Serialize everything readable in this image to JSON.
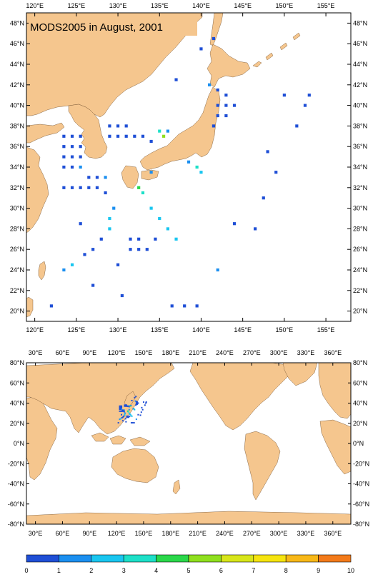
{
  "regional_map": {
    "title": "MODS2005 in August, 2001",
    "x_ticks": [
      "120°E",
      "125°E",
      "130°E",
      "135°E",
      "140°E",
      "145°E",
      "150°E",
      "155°E"
    ],
    "y_ticks": [
      "48°N",
      "46°N",
      "44°N",
      "42°N",
      "40°N",
      "38°N",
      "36°N",
      "34°N",
      "32°N",
      "30°N",
      "28°N",
      "26°N",
      "24°N",
      "22°N",
      "20°N"
    ],
    "extent": {
      "lon": [
        119,
        158
      ],
      "lat": [
        19,
        49
      ]
    }
  },
  "global_map": {
    "x_ticks": [
      "30°E",
      "60°E",
      "90°E",
      "120°E",
      "150°E",
      "180°E",
      "210°E",
      "240°E",
      "270°E",
      "300°E",
      "330°E",
      "360°E"
    ],
    "y_ticks": [
      "80°N",
      "60°N",
      "40°N",
      "20°N",
      "0°N",
      "-20°N",
      "-40°N",
      "-60°N",
      "-80°N"
    ],
    "extent": {
      "lon": [
        20,
        380
      ],
      "lat": [
        -80,
        80
      ]
    }
  },
  "colorbar": {
    "labels": [
      "0",
      "1",
      "2",
      "3",
      "4",
      "5",
      "6",
      "7",
      "8",
      "9",
      "10"
    ],
    "colors": [
      "#1f4fd6",
      "#1b8ff0",
      "#19c6f0",
      "#1de0c8",
      "#2ad84a",
      "#8fe01e",
      "#d8e61a",
      "#f6e40f",
      "#f8b818",
      "#f37a1a",
      "#e8421a"
    ]
  },
  "chart_data": {
    "type": "heatmap",
    "title": "MODS2005 in August, 2001",
    "xlabel": "",
    "ylabel": "",
    "value_range": [
      0,
      10
    ],
    "cells": [
      {
        "lon": 123.5,
        "lat": 37.0,
        "v": 0.5
      },
      {
        "lon": 124.5,
        "lat": 37.0,
        "v": 0.5
      },
      {
        "lon": 125.5,
        "lat": 37.0,
        "v": 0.5
      },
      {
        "lon": 123.5,
        "lat": 36.0,
        "v": 0.5
      },
      {
        "lon": 124.5,
        "lat": 36.0,
        "v": 0.5
      },
      {
        "lon": 125.5,
        "lat": 36.0,
        "v": 0.5
      },
      {
        "lon": 123.5,
        "lat": 35.0,
        "v": 0.5
      },
      {
        "lon": 124.5,
        "lat": 35.0,
        "v": 0.5
      },
      {
        "lon": 125.5,
        "lat": 35.0,
        "v": 0.5
      },
      {
        "lon": 123.5,
        "lat": 34.0,
        "v": 0.5
      },
      {
        "lon": 124.5,
        "lat": 34.0,
        "v": 0.5
      },
      {
        "lon": 125.5,
        "lat": 34.0,
        "v": 1.5
      },
      {
        "lon": 126.5,
        "lat": 33.0,
        "v": 0.5
      },
      {
        "lon": 127.5,
        "lat": 33.0,
        "v": 0.5
      },
      {
        "lon": 128.5,
        "lat": 33.0,
        "v": 1.5
      },
      {
        "lon": 123.5,
        "lat": 32.0,
        "v": 0.5
      },
      {
        "lon": 124.5,
        "lat": 32.0,
        "v": 0.5
      },
      {
        "lon": 125.5,
        "lat": 32.0,
        "v": 0.5
      },
      {
        "lon": 126.5,
        "lat": 32.0,
        "v": 0.5
      },
      {
        "lon": 127.5,
        "lat": 32.0,
        "v": 0.5
      },
      {
        "lon": 128.5,
        "lat": 31.5,
        "v": 0.5
      },
      {
        "lon": 129.0,
        "lat": 38.0,
        "v": 0.5
      },
      {
        "lon": 130.0,
        "lat": 38.0,
        "v": 0.5
      },
      {
        "lon": 131.0,
        "lat": 38.0,
        "v": 0.5
      },
      {
        "lon": 129.0,
        "lat": 37.0,
        "v": 0.5
      },
      {
        "lon": 130.0,
        "lat": 37.0,
        "v": 0.5
      },
      {
        "lon": 131.0,
        "lat": 37.0,
        "v": 0.5
      },
      {
        "lon": 132.0,
        "lat": 37.0,
        "v": 0.5
      },
      {
        "lon": 133.0,
        "lat": 37.0,
        "v": 0.5
      },
      {
        "lon": 134.0,
        "lat": 36.5,
        "v": 0.5
      },
      {
        "lon": 135.5,
        "lat": 37.0,
        "v": 5.0
      },
      {
        "lon": 135.0,
        "lat": 37.5,
        "v": 3.0
      },
      {
        "lon": 136.0,
        "lat": 37.5,
        "v": 1.5
      },
      {
        "lon": 132.5,
        "lat": 32.0,
        "v": 4.5
      },
      {
        "lon": 133.0,
        "lat": 31.5,
        "v": 3.0
      },
      {
        "lon": 134.0,
        "lat": 33.5,
        "v": 1.5
      },
      {
        "lon": 139.5,
        "lat": 34.0,
        "v": 3.0
      },
      {
        "lon": 140.0,
        "lat": 33.5,
        "v": 2.5
      },
      {
        "lon": 138.5,
        "lat": 34.5,
        "v": 1.5
      },
      {
        "lon": 141.0,
        "lat": 42.0,
        "v": 1.5
      },
      {
        "lon": 142.0,
        "lat": 41.5,
        "v": 0.5
      },
      {
        "lon": 143.0,
        "lat": 41.0,
        "v": 0.5
      },
      {
        "lon": 142.0,
        "lat": 40.0,
        "v": 0.5
      },
      {
        "lon": 143.0,
        "lat": 40.0,
        "v": 0.5
      },
      {
        "lon": 144.0,
        "lat": 40.0,
        "v": 0.5
      },
      {
        "lon": 142.0,
        "lat": 39.0,
        "v": 0.5
      },
      {
        "lon": 143.0,
        "lat": 39.0,
        "v": 0.5
      },
      {
        "lon": 141.5,
        "lat": 38.0,
        "v": 0.5
      },
      {
        "lon": 129.5,
        "lat": 30.0,
        "v": 1.5
      },
      {
        "lon": 129.0,
        "lat": 29.0,
        "v": 2.5
      },
      {
        "lon": 129.0,
        "lat": 28.0,
        "v": 2.5
      },
      {
        "lon": 128.0,
        "lat": 27.0,
        "v": 0.5
      },
      {
        "lon": 127.0,
        "lat": 26.0,
        "v": 0.5
      },
      {
        "lon": 126.0,
        "lat": 25.5,
        "v": 0.5
      },
      {
        "lon": 131.5,
        "lat": 27.0,
        "v": 0.5
      },
      {
        "lon": 132.5,
        "lat": 27.0,
        "v": 0.5
      },
      {
        "lon": 131.5,
        "lat": 26.0,
        "v": 0.5
      },
      {
        "lon": 132.5,
        "lat": 26.0,
        "v": 0.5
      },
      {
        "lon": 133.5,
        "lat": 26.0,
        "v": 0.5
      },
      {
        "lon": 134.5,
        "lat": 27.0,
        "v": 0.5
      },
      {
        "lon": 134.0,
        "lat": 30.0,
        "v": 2.5
      },
      {
        "lon": 135.0,
        "lat": 29.0,
        "v": 2.5
      },
      {
        "lon": 136.0,
        "lat": 28.0,
        "v": 2.5
      },
      {
        "lon": 137.0,
        "lat": 27.0,
        "v": 2.5
      },
      {
        "lon": 130.0,
        "lat": 24.5,
        "v": 0.5
      },
      {
        "lon": 123.5,
        "lat": 24.0,
        "v": 1.5
      },
      {
        "lon": 124.5,
        "lat": 24.5,
        "v": 2.5
      },
      {
        "lon": 127.0,
        "lat": 22.5,
        "v": 0.5
      },
      {
        "lon": 142.0,
        "lat": 24.0,
        "v": 1.5
      },
      {
        "lon": 150.0,
        "lat": 41.0,
        "v": 0.5
      },
      {
        "lon": 152.5,
        "lat": 40.0,
        "v": 0.5
      },
      {
        "lon": 151.5,
        "lat": 38.0,
        "v": 0.5
      },
      {
        "lon": 148.0,
        "lat": 35.5,
        "v": 0.5
      },
      {
        "lon": 149.0,
        "lat": 33.5,
        "v": 0.5
      },
      {
        "lon": 147.5,
        "lat": 31.0,
        "v": 0.5
      },
      {
        "lon": 144.0,
        "lat": 28.5,
        "v": 0.5
      },
      {
        "lon": 146.5,
        "lat": 28.0,
        "v": 0.5
      },
      {
        "lon": 153.0,
        "lat": 41.0,
        "v": 0.5
      },
      {
        "lon": 136.5,
        "lat": 20.5,
        "v": 0.5
      },
      {
        "lon": 138.0,
        "lat": 20.5,
        "v": 0.5
      },
      {
        "lon": 139.5,
        "lat": 20.5,
        "v": 0.5
      },
      {
        "lon": 130.5,
        "lat": 21.5,
        "v": 0.5
      },
      {
        "lon": 125.5,
        "lat": 28.5,
        "v": 0.5
      },
      {
        "lon": 122.0,
        "lat": 20.5,
        "v": 0.5
      },
      {
        "lon": 140.0,
        "lat": 45.5,
        "v": 0.5
      },
      {
        "lon": 141.5,
        "lat": 46.5,
        "v": 0.5
      },
      {
        "lon": 137.0,
        "lat": 42.5,
        "v": 0.5
      }
    ]
  }
}
